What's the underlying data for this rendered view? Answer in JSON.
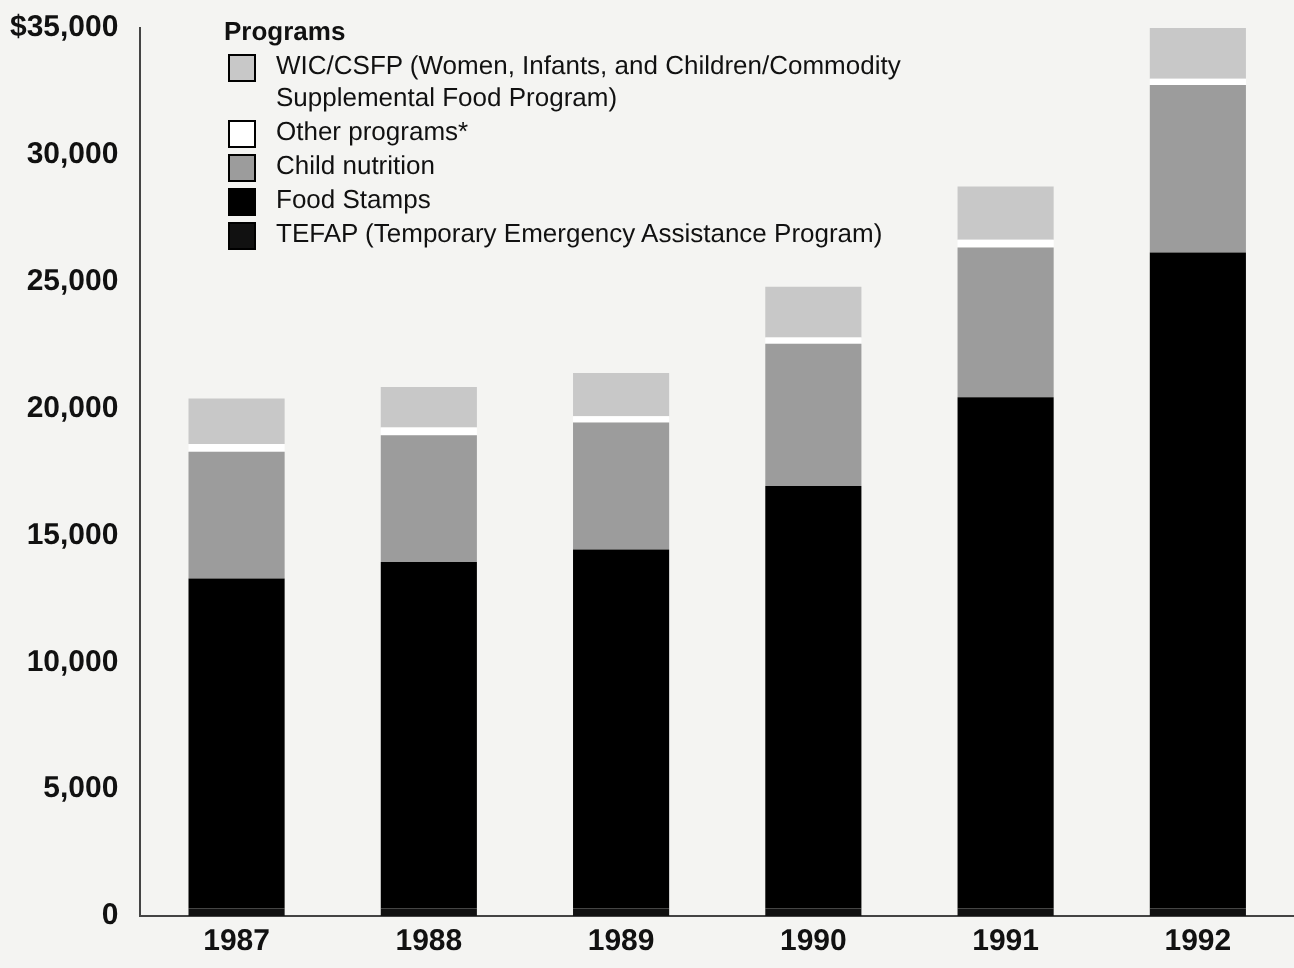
{
  "chart_data": {
    "type": "bar",
    "stacked": true,
    "legend_title": "Programs",
    "legend": "top left",
    "grid": false,
    "categories": [
      "1987",
      "1988",
      "1989",
      "1990",
      "1991",
      "1992"
    ],
    "ylim": [
      0,
      35000
    ],
    "yticks": [
      0,
      {
        "value": 5000,
        "label": "5,000"
      },
      {
        "value": 10000,
        "label": "10,000"
      },
      {
        "value": 15000,
        "label": "15,000"
      },
      {
        "value": 20000,
        "label": "20,000"
      },
      {
        "value": 25000,
        "label": "25,000"
      },
      {
        "value": 30000,
        "label": "30,000"
      },
      {
        "value": 35000,
        "label": "$35,000"
      }
    ],
    "series": [
      {
        "name": "TEFAP (Temporary Emergency Assistance Program)",
        "color": "#111111",
        "values": [
          300,
          300,
          300,
          300,
          300,
          300
        ]
      },
      {
        "name": "Food Stamps",
        "color": "#000000",
        "values": [
          13000,
          13650,
          14150,
          16650,
          20150,
          25850
        ]
      },
      {
        "name": "Child nutrition",
        "color": "#9c9c9c",
        "values": [
          5000,
          5000,
          5000,
          5600,
          5900,
          6600
        ]
      },
      {
        "name": "Other programs*",
        "color": "#ffffff",
        "values": [
          300,
          300,
          250,
          250,
          300,
          250
        ]
      },
      {
        "name": "WIC/CSFP (Women, Infants, and Children/Commodity Supplemental Food Program)",
        "color": "#c8c8c8",
        "values": [
          1800,
          1600,
          1700,
          2000,
          2100,
          2100
        ]
      }
    ]
  }
}
